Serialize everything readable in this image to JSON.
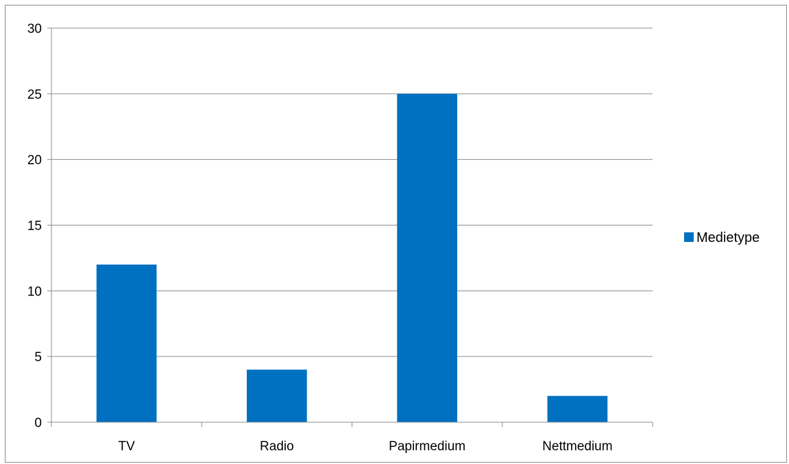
{
  "chart_data": {
    "type": "bar",
    "categories": [
      "TV",
      "Radio",
      "Papirmedium",
      "Nettmedium"
    ],
    "series": [
      {
        "name": "Medietype",
        "values": [
          12,
          4,
          25,
          2
        ],
        "color": "#0070C0"
      }
    ],
    "ylim": [
      0,
      30
    ],
    "yticks": [
      0,
      5,
      10,
      15,
      20,
      25,
      30
    ],
    "ytick_labels": [
      "0",
      "5",
      "10",
      "15",
      "20",
      "25",
      "30"
    ],
    "grid": true,
    "legend_position": "right"
  }
}
